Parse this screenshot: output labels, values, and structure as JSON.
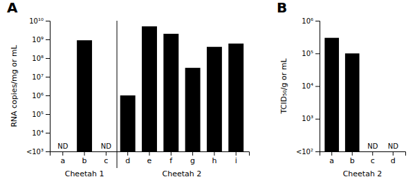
{
  "chart_data": [
    {
      "type": "bar",
      "title": "A",
      "log": "y",
      "color": "#000000",
      "categories": [
        "a",
        "b",
        "c",
        "d",
        "e",
        "f",
        "g",
        "h",
        "i"
      ],
      "values": [
        null,
        900000000.0,
        null,
        1000000.0,
        5000000000.0,
        2000000000.0,
        30000000.0,
        400000000.0,
        600000000.0
      ],
      "ylabel": "RNA copies/mg or mL",
      "ylim": [
        1000,
        10000000000
      ],
      "yticks": [
        {
          "value": 1000,
          "label": "<10³"
        },
        {
          "value": 10000,
          "label": "10⁴"
        },
        {
          "value": 100000,
          "label": "10⁵"
        },
        {
          "value": 1000000,
          "label": "10⁶"
        },
        {
          "value": 10000000,
          "label": "10⁷"
        },
        {
          "value": 100000000,
          "label": "10⁸"
        },
        {
          "value": 1000000000,
          "label": "10⁹"
        },
        {
          "value": 10000000000,
          "label": "10¹⁰"
        }
      ],
      "annotations": [
        {
          "text": "ND",
          "category": "a"
        },
        {
          "text": "ND",
          "category": "c"
        },
        {
          "text": "Cheetah 1",
          "categories": [
            "a",
            "b",
            "c"
          ]
        },
        {
          "text": "Cheetah 2",
          "categories": [
            "d",
            "e",
            "f",
            "g",
            "h",
            "i"
          ]
        }
      ]
    },
    {
      "type": "bar",
      "title": "B",
      "log": "y",
      "color": "#000000",
      "categories": [
        "a",
        "b",
        "c",
        "d"
      ],
      "values": [
        300000.0,
        100000.0,
        null,
        null
      ],
      "ylabel": "TCID₅₀/g or mL",
      "xlabel": "Cheetah 2",
      "ylim": [
        100,
        1000000
      ],
      "yticks": [
        {
          "value": 100,
          "label": "<10²"
        },
        {
          "value": 1000,
          "label": "10³"
        },
        {
          "value": 10000,
          "label": "10⁴"
        },
        {
          "value": 100000,
          "label": "10⁵"
        },
        {
          "value": 1000000,
          "label": "10⁶"
        }
      ],
      "annotations": [
        {
          "text": "ND",
          "category": "c"
        },
        {
          "text": "ND",
          "category": "d"
        }
      ]
    }
  ]
}
